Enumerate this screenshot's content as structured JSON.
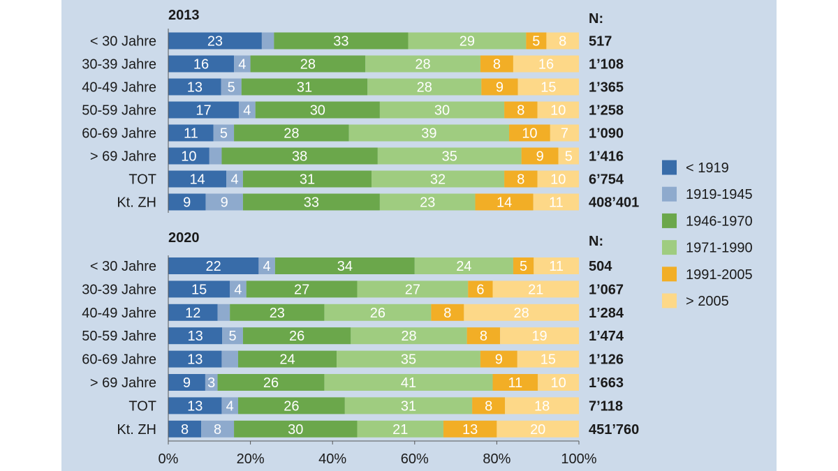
{
  "chart_data": {
    "type": "bar",
    "horizontal": true,
    "stacked": true,
    "xlim": [
      0,
      100
    ],
    "xticks": [
      0,
      20,
      40,
      60,
      80,
      100
    ],
    "xtick_labels": [
      "0%",
      "20%",
      "40%",
      "60%",
      "80%",
      "100%"
    ],
    "background": "#ccdaea",
    "legend": {
      "placement": "right",
      "entries": [
        "< 1919",
        "1919-1945",
        "1946-1970",
        "1971-1990",
        "1991-2005",
        "> 2005"
      ],
      "colors": [
        "#386ca9",
        "#8eaacd",
        "#6ba74b",
        "#9fcc80",
        "#f2ae26",
        "#fdd888"
      ]
    },
    "panels": [
      {
        "title": "2013",
        "n_header": "N:",
        "rows": [
          {
            "category": "< 30 Jahre",
            "values": [
              23,
              3,
              33,
              29,
              5,
              8
            ],
            "hidden_labels": [
              1
            ],
            "n": "517"
          },
          {
            "category": "30-39 Jahre",
            "values": [
              16,
              4,
              28,
              28,
              8,
              16
            ],
            "hidden_labels": [],
            "n": "1’108"
          },
          {
            "category": "40-49 Jahre",
            "values": [
              13,
              5,
              31,
              28,
              9,
              15
            ],
            "hidden_labels": [],
            "n": "1’365"
          },
          {
            "category": "50-59 Jahre",
            "values": [
              17,
              4,
              30,
              30,
              8,
              10
            ],
            "hidden_labels": [],
            "n": "1’258"
          },
          {
            "category": "60-69 Jahre",
            "values": [
              11,
              5,
              28,
              39,
              10,
              7
            ],
            "hidden_labels": [],
            "n": "1’090"
          },
          {
            "category": "> 69 Jahre",
            "values": [
              10,
              3,
              38,
              35,
              9,
              5
            ],
            "hidden_labels": [
              1
            ],
            "n": "1’416"
          },
          {
            "category": "TOT",
            "values": [
              14,
              4,
              31,
              32,
              8,
              10
            ],
            "hidden_labels": [],
            "n": "6’754"
          },
          {
            "category": "Kt. ZH",
            "values": [
              9,
              9,
              33,
              23,
              14,
              11
            ],
            "hidden_labels": [],
            "n": "408’401"
          }
        ]
      },
      {
        "title": "2020",
        "n_header": "N:",
        "rows": [
          {
            "category": "< 30 Jahre",
            "values": [
              22,
              4,
              34,
              24,
              5,
              11
            ],
            "hidden_labels": [],
            "n": "504"
          },
          {
            "category": "30-39 Jahre",
            "values": [
              15,
              4,
              27,
              27,
              6,
              21
            ],
            "hidden_labels": [],
            "n": "1’067"
          },
          {
            "category": "40-49 Jahre",
            "values": [
              12,
              3,
              23,
              26,
              8,
              28
            ],
            "hidden_labels": [
              1
            ],
            "n": "1’284"
          },
          {
            "category": "50-59 Jahre",
            "values": [
              13,
              5,
              26,
              28,
              8,
              19
            ],
            "hidden_labels": [],
            "n": "1’474"
          },
          {
            "category": "60-69 Jahre",
            "values": [
              13,
              4,
              24,
              35,
              9,
              15
            ],
            "hidden_labels": [
              1
            ],
            "n": "1’126"
          },
          {
            "category": "> 69 Jahre",
            "values": [
              9,
              3,
              26,
              41,
              11,
              10
            ],
            "hidden_labels": [],
            "n": "1’663"
          },
          {
            "category": "TOT",
            "values": [
              13,
              4,
              26,
              31,
              8,
              18
            ],
            "hidden_labels": [],
            "n": "7’118"
          },
          {
            "category": "Kt. ZH",
            "values": [
              8,
              8,
              30,
              21,
              13,
              20
            ],
            "hidden_labels": [],
            "n": "451’760"
          }
        ]
      }
    ]
  }
}
